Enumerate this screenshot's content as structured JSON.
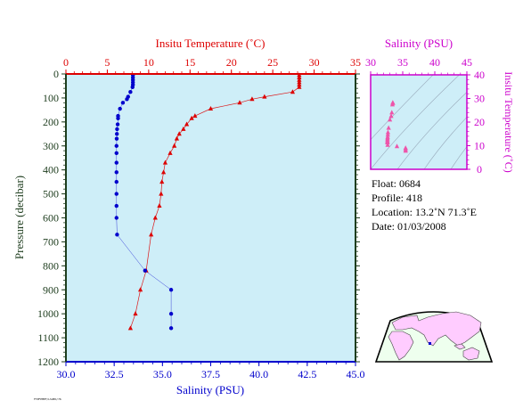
{
  "info": {
    "float": "Float:  0684",
    "profile": "Profile:  418",
    "location": "Location:  13.2˚N  71.3˚E",
    "date": "Date:  01/03/2008"
  },
  "footer": "FTPFPMEF/LSUEO/76",
  "colors": {
    "plot_bg": "#ceeef8",
    "temperature": "#dd0000",
    "salinity": "#0000cc",
    "pressure_axis": "#1e3d1e",
    "inset_axis": "#cc00cc",
    "inset_points": "#ee55aa",
    "land": "#ffccff",
    "ocean": "#eeffee"
  },
  "chart_data": [
    {
      "type": "line",
      "title": "",
      "y": {
        "label": "Pressure (decibar)",
        "lim": [
          0,
          1200
        ],
        "ticks": [
          0,
          100,
          200,
          300,
          400,
          500,
          600,
          700,
          800,
          900,
          1000,
          1100,
          1200
        ],
        "inverted": true
      },
      "x_top": {
        "label": "Insitu Temperature (˚C)",
        "lim": [
          0,
          35
        ],
        "ticks": [
          0,
          5,
          10,
          15,
          20,
          25,
          30,
          35
        ]
      },
      "x_bottom": {
        "label": "Salinity (PSU)",
        "lim": [
          30,
          45
        ],
        "ticks": [
          "30.0",
          "32.5",
          "35.0",
          "37.5",
          "40.0",
          "42.5",
          "45.0"
        ]
      },
      "series": [
        {
          "kind": "temperature",
          "axis": "x_top",
          "marker": "triangle",
          "x": [
            28.2,
            28.2,
            28.2,
            28.2,
            28.2,
            28.2,
            27.4,
            24.0,
            22.5,
            21.0,
            17.5,
            15.6,
            15.2,
            14.6,
            14.2,
            13.7,
            13.4,
            13.1,
            12.6,
            12.0,
            11.8,
            11.6,
            11.5,
            11.3,
            10.8,
            10.3,
            9.7,
            9.0,
            8.4,
            7.8
          ],
          "y": [
            5,
            15,
            25,
            35,
            45,
            55,
            75,
            95,
            105,
            120,
            145,
            175,
            185,
            210,
            230,
            250,
            270,
            300,
            330,
            370,
            410,
            450,
            500,
            550,
            600,
            670,
            820,
            900,
            1000,
            1060
          ]
        },
        {
          "kind": "salinity",
          "axis": "x_bottom",
          "marker": "circle",
          "x": [
            33.47,
            33.47,
            33.47,
            33.47,
            33.47,
            33.45,
            33.34,
            33.22,
            33.16,
            32.95,
            32.8,
            32.7,
            32.7,
            32.68,
            32.65,
            32.64,
            32.63,
            32.62,
            32.62,
            32.62,
            32.62,
            32.62,
            32.62,
            32.62,
            32.62,
            32.65,
            34.1,
            35.45,
            35.45,
            35.45
          ],
          "y": [
            5,
            15,
            25,
            35,
            45,
            55,
            75,
            95,
            105,
            120,
            145,
            175,
            185,
            210,
            230,
            250,
            270,
            300,
            330,
            370,
            410,
            450,
            500,
            550,
            600,
            670,
            820,
            900,
            1000,
            1060
          ]
        }
      ]
    },
    {
      "type": "scatter",
      "title": "",
      "x": {
        "label": "Salinity (PSU)",
        "lim": [
          30,
          45
        ],
        "ticks": [
          30,
          35,
          40,
          45
        ]
      },
      "y": {
        "label": "Insitu Temperature (˚C)",
        "lim": [
          0,
          40
        ],
        "ticks": [
          0,
          10,
          20,
          30,
          40
        ]
      },
      "points": [
        {
          "salinity": 33.45,
          "temp": 28.2
        },
        {
          "salinity": 33.47,
          "temp": 28.0
        },
        {
          "salinity": 33.4,
          "temp": 27.4
        },
        {
          "salinity": 33.3,
          "temp": 24.0
        },
        {
          "salinity": 33.2,
          "temp": 22.5
        },
        {
          "salinity": 33.0,
          "temp": 21.0
        },
        {
          "salinity": 32.8,
          "temp": 17.5
        },
        {
          "salinity": 32.7,
          "temp": 15.6
        },
        {
          "salinity": 32.68,
          "temp": 14.6
        },
        {
          "salinity": 32.65,
          "temp": 13.7
        },
        {
          "salinity": 32.63,
          "temp": 13.1
        },
        {
          "salinity": 32.62,
          "temp": 12.6
        },
        {
          "salinity": 32.62,
          "temp": 12.0
        },
        {
          "salinity": 32.62,
          "temp": 11.6
        },
        {
          "salinity": 32.62,
          "temp": 11.3
        },
        {
          "salinity": 32.65,
          "temp": 10.3
        },
        {
          "salinity": 34.1,
          "temp": 9.7
        },
        {
          "salinity": 35.45,
          "temp": 9.0
        },
        {
          "salinity": 35.45,
          "temp": 8.4
        },
        {
          "salinity": 35.45,
          "temp": 7.8
        }
      ],
      "density_contours": true
    }
  ]
}
